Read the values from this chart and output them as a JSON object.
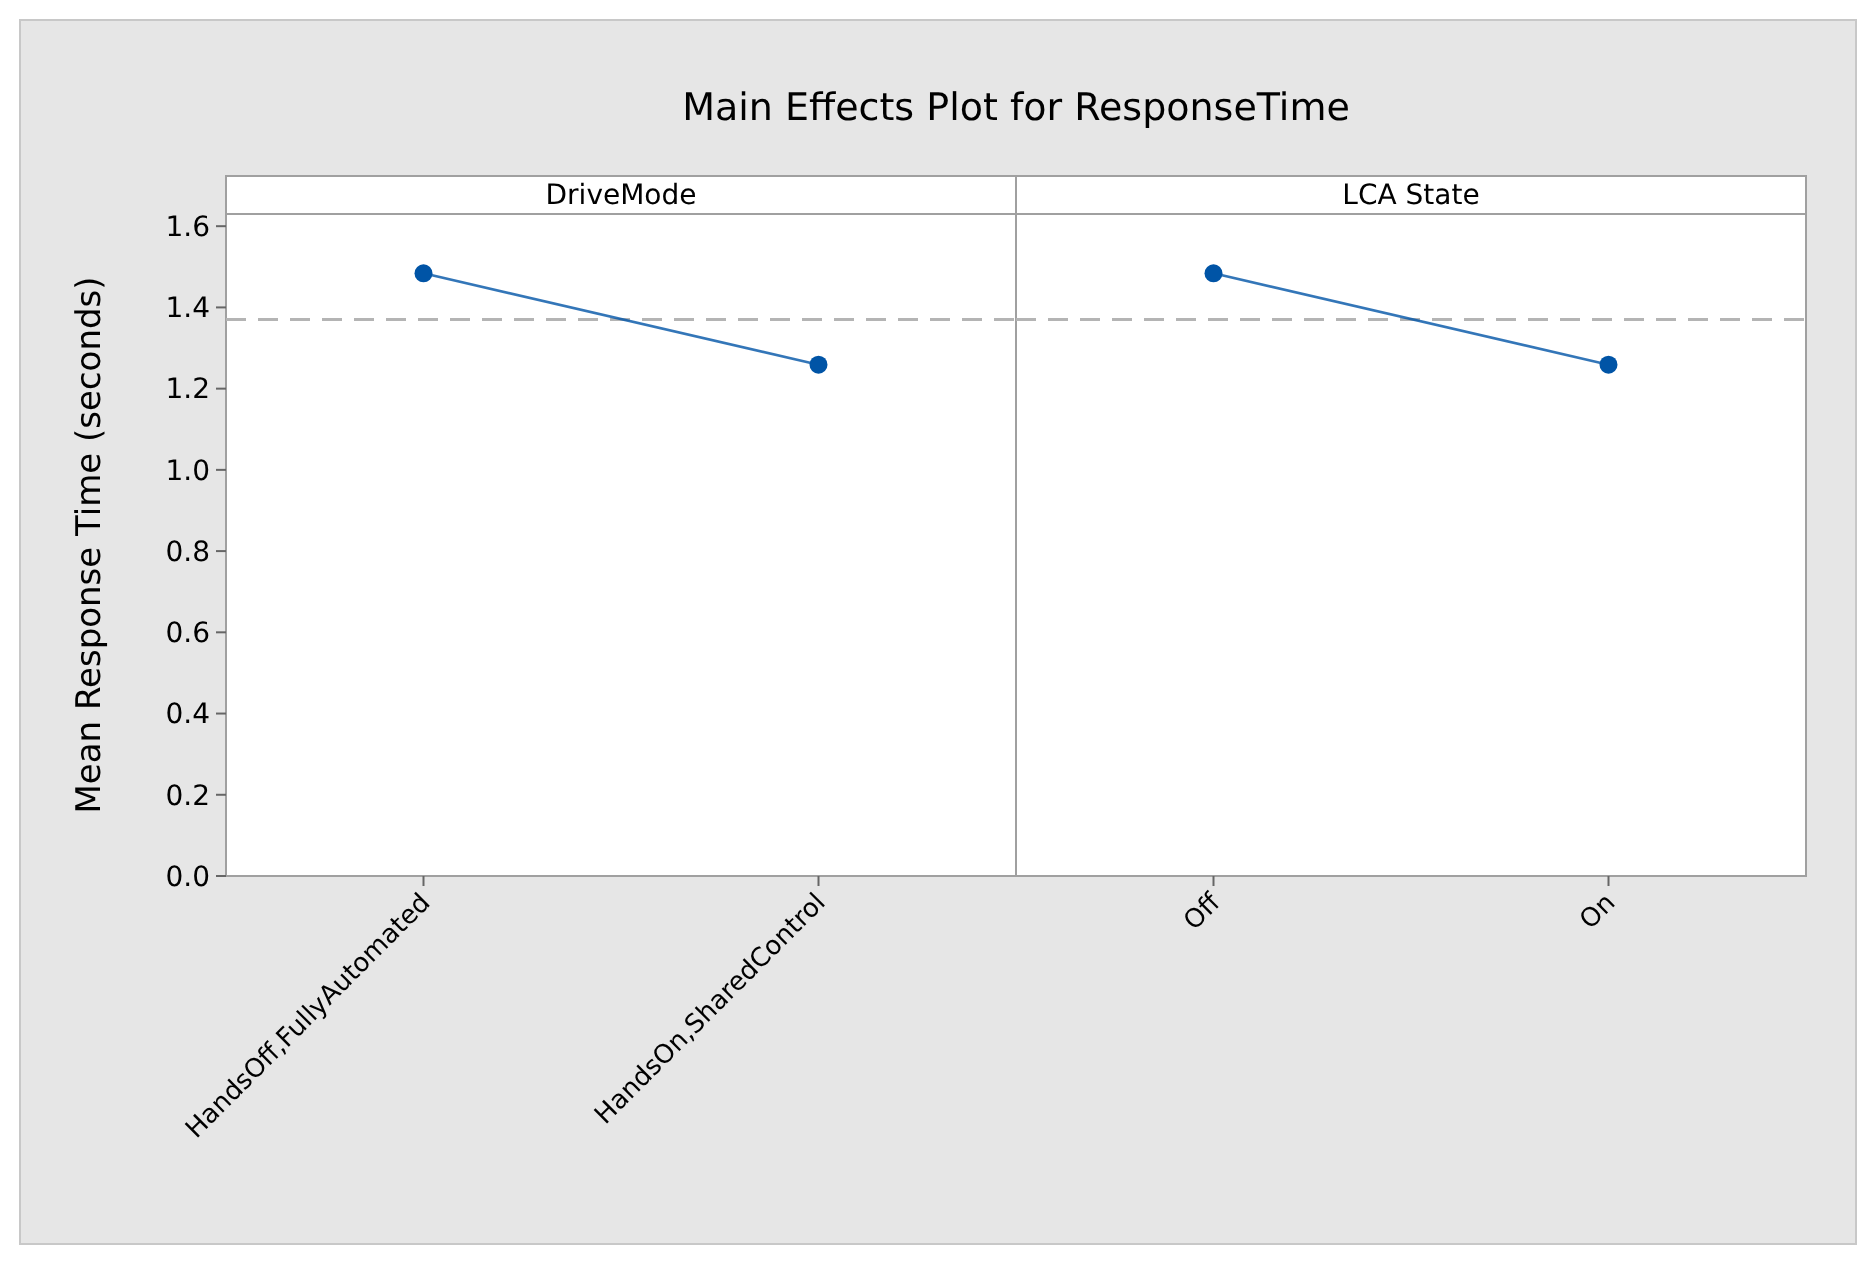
{
  "chart_data": [
    {
      "type": "line",
      "title": "Main Effects Plot for ResponseTime",
      "subtitle": "DriveMode",
      "ylabel": "Mean Response Time (seconds)",
      "categories": [
        "HandsOff,FullyAutomated",
        "HandsOn,SharedControl"
      ],
      "series": [
        {
          "color": "#0054a6",
          "values": [
            1.484,
            1.259
          ]
        }
      ],
      "ylim": [
        0,
        1.63
      ],
      "yticks": [
        {
          "value": 0,
          "label": "0.0"
        },
        0.2,
        0.4,
        0.6,
        0.8,
        {
          "value": 1,
          "label": "1.0"
        },
        1.2,
        1.4,
        1.6
      ],
      "grid": false,
      "marker": "circle",
      "line_style": "solid",
      "ref_lines": [
        {
          "axis": "y",
          "value": 1.37,
          "color": "#b4b4b4",
          "line_style": "dashed"
        }
      ]
    },
    {
      "type": "line",
      "subtitle": "LCA State",
      "categories": [
        "Off",
        "On"
      ],
      "series": [
        {
          "color": "#0054a6",
          "values": [
            1.484,
            1.259
          ]
        }
      ],
      "ylim": [
        0,
        1.63
      ],
      "tick_labels": "x",
      "grid": false,
      "marker": "circle",
      "line_style": "solid",
      "ref_lines": [
        {
          "axis": "y",
          "value": 1.37,
          "color": "#b4b4b4",
          "line_style": "dashed"
        }
      ]
    }
  ]
}
